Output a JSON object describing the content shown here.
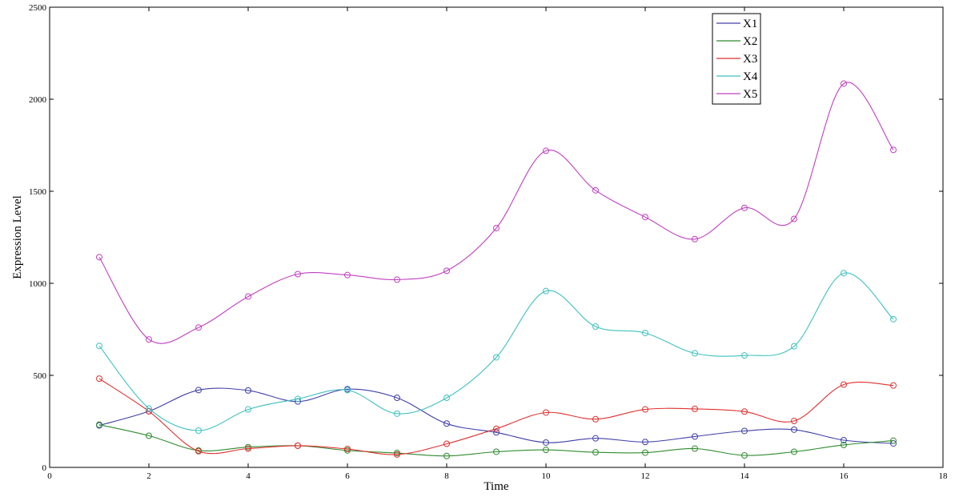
{
  "chart_data": {
    "type": "line",
    "title": "",
    "xlabel": "Time",
    "ylabel": "Expression Level",
    "xlim": [
      0,
      18
    ],
    "ylim": [
      0,
      2500
    ],
    "xticks": [
      0,
      2,
      4,
      6,
      8,
      10,
      12,
      14,
      16,
      18
    ],
    "yticks": [
      0,
      500,
      1000,
      1500,
      2000,
      2500
    ],
    "grid": false,
    "legend_position": "top-right",
    "markers": "circle",
    "x": [
      1,
      2,
      3,
      4,
      5,
      6,
      7,
      8,
      9,
      10,
      11,
      12,
      13,
      14,
      15,
      16,
      17
    ],
    "series": [
      {
        "name": "X1",
        "color": "#4040a8",
        "values": [
          228,
          305,
          420,
          418,
          358,
          425,
          378,
          238,
          190,
          135,
          158,
          138,
          168,
          198,
          205,
          148,
          130
        ]
      },
      {
        "name": "X2",
        "color": "#2e8b2e",
        "values": [
          232,
          172,
          92,
          110,
          118,
          92,
          78,
          62,
          85,
          95,
          82,
          80,
          102,
          65,
          85,
          122,
          145
        ]
      },
      {
        "name": "X3",
        "color": "#e03030",
        "values": [
          482,
          305,
          88,
          102,
          118,
          100,
          70,
          128,
          210,
          298,
          262,
          315,
          318,
          303,
          252,
          450,
          445
        ]
      },
      {
        "name": "X4",
        "color": "#40c0c0",
        "values": [
          660,
          320,
          200,
          315,
          372,
          420,
          292,
          378,
          598,
          958,
          765,
          730,
          620,
          608,
          658,
          1055,
          805
        ]
      },
      {
        "name": "X5",
        "color": "#c040c0",
        "values": [
          1142,
          695,
          760,
          928,
          1050,
          1045,
          1020,
          1068,
          1300,
          1720,
          1505,
          1360,
          1240,
          1410,
          1350,
          2085,
          1725
        ]
      }
    ]
  }
}
